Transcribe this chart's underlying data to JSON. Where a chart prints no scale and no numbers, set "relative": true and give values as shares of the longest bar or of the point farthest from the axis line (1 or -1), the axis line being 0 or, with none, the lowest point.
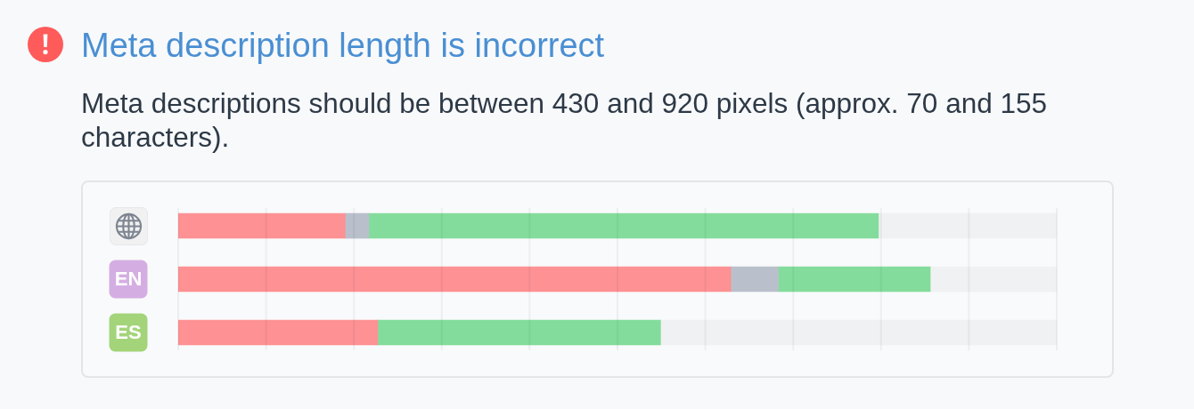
{
  "chart_data": {
    "type": "bar",
    "orientation": "horizontal",
    "stacked": true,
    "relative": true,
    "title": "Meta description length is incorrect",
    "subtitle": "Meta descriptions should be between 430 and 920 pixels (approx. 70 and 155 characters).",
    "categories": [
      null,
      "EN",
      "ES"
    ],
    "series": [
      {
        "color": "#fd9193",
        "values": [
          0.19,
          0.629,
          0.227
        ]
      },
      {
        "color": "#b9c0cc",
        "values": [
          0.027,
          0.054,
          0
        ]
      },
      {
        "color": "#83dc9b",
        "values": [
          0.58,
          0.173,
          0.322
        ]
      },
      {
        "color": "#f0f1f2",
        "values": [
          0.203,
          0.144,
          0.451
        ]
      }
    ],
    "grid": "x"
  }
}
